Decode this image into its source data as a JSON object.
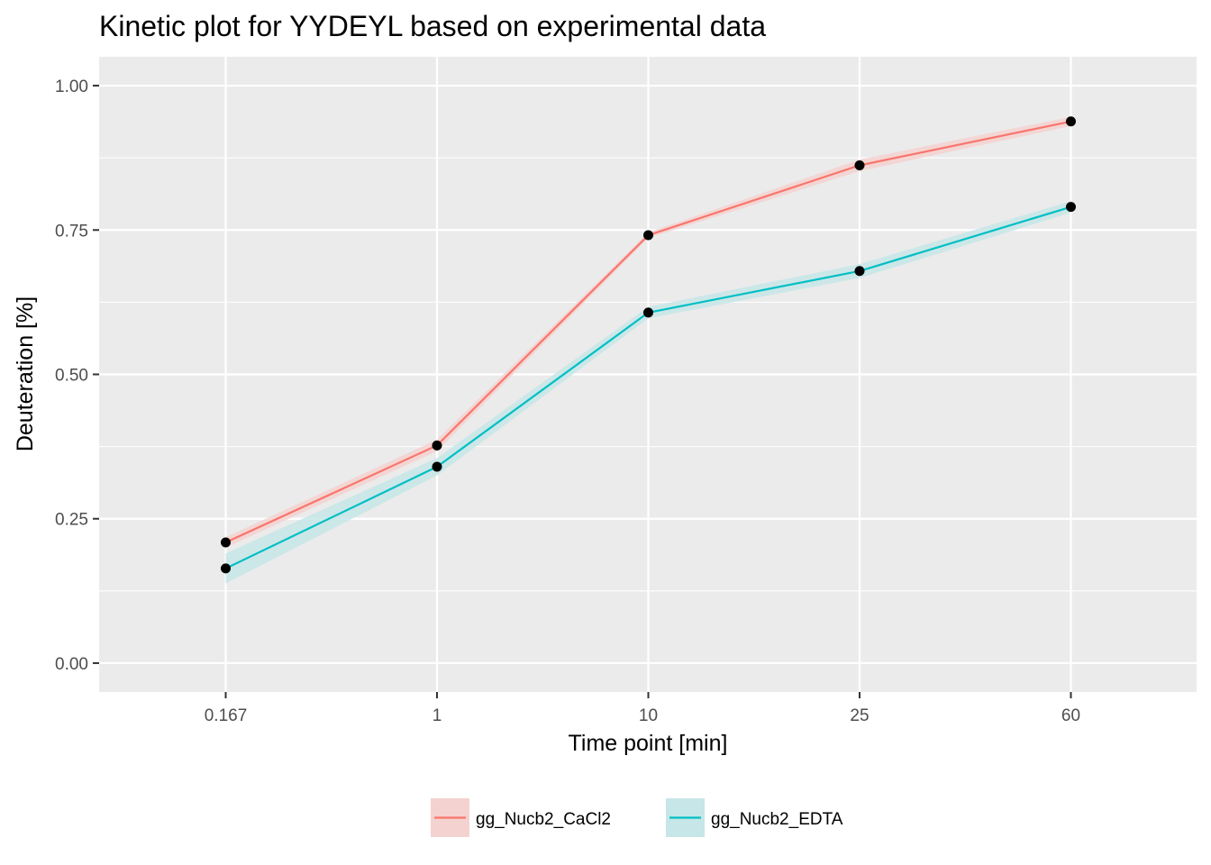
{
  "chart_data": {
    "type": "line",
    "title": "Kinetic plot for YYDEYL based on experimental data",
    "xlabel": "Time point [min]",
    "ylabel": "Deuteration [%]",
    "categories": [
      "0.167",
      "1",
      "10",
      "25",
      "60"
    ],
    "y_ticks": [
      "0.00",
      "0.25",
      "0.50",
      "0.75",
      "1.00"
    ],
    "ylim": [
      -0.05,
      1.05
    ],
    "grid": true,
    "legend_position": "bottom",
    "series": [
      {
        "name": "gg_Nucb2_CaCl2",
        "color": "#F8766D",
        "band_color": "#F4D2D0",
        "values": [
          0.209,
          0.377,
          0.741,
          0.862,
          0.938
        ],
        "lower": [
          0.2,
          0.367,
          0.736,
          0.852,
          0.93
        ],
        "upper": [
          0.218,
          0.387,
          0.746,
          0.872,
          0.946
        ]
      },
      {
        "name": "gg_Nucb2_EDTA",
        "color": "#00BFC4",
        "band_color": "#C7E6E7",
        "values": [
          0.164,
          0.34,
          0.607,
          0.679,
          0.79
        ],
        "lower": [
          0.138,
          0.325,
          0.597,
          0.667,
          0.78
        ],
        "upper": [
          0.19,
          0.355,
          0.617,
          0.691,
          0.8
        ]
      }
    ]
  }
}
